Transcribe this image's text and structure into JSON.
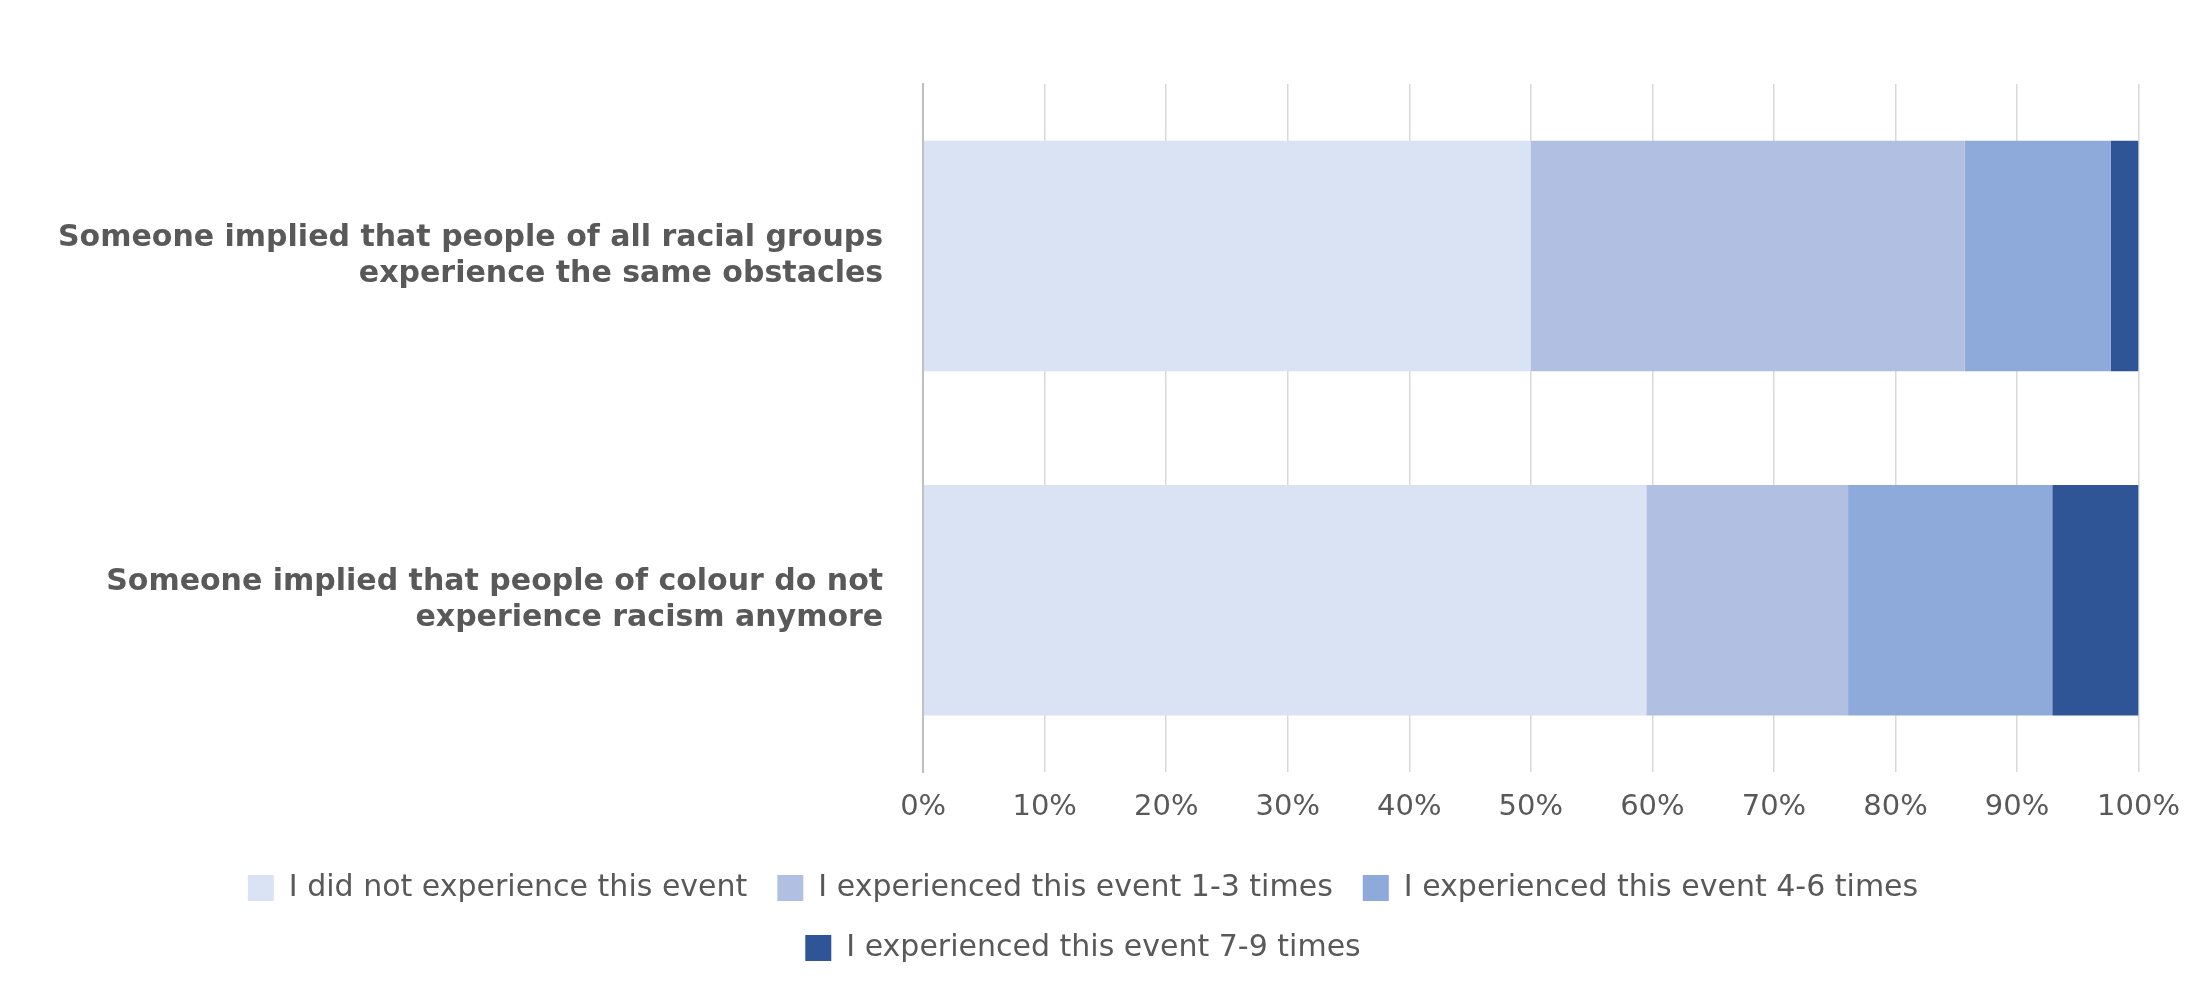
{
  "chart_data": {
    "type": "bar",
    "orientation": "horizontal",
    "stacked": true,
    "categories": [
      "Someone implied that people of all racial groups experience the same obstacles",
      "Someone implied that people of colour do not experience racism anymore"
    ],
    "series": [
      {
        "name": "I did not experience this event",
        "color": "#dae3f3",
        "values": [
          50,
          59.5
        ]
      },
      {
        "name": "I experienced this event 1-3 times",
        "color": "#b0bfe2",
        "values": [
          35.7,
          16.6
        ]
      },
      {
        "name": "I experienced this event 4-6 times",
        "color": "#8eaadb",
        "values": [
          12,
          16.8
        ]
      },
      {
        "name": "I experienced this event 7-9 times",
        "color": "#2f5597",
        "values": [
          2.3,
          7.1
        ]
      }
    ],
    "xlim": [
      0,
      100
    ],
    "xticks": [
      {
        "value": 0,
        "label": "0%"
      },
      {
        "value": 10,
        "label": "10%"
      },
      {
        "value": 20,
        "label": "20%"
      },
      {
        "value": 30,
        "label": "30%"
      },
      {
        "value": 40,
        "label": "40%"
      },
      {
        "value": 50,
        "label": "50%"
      },
      {
        "value": 60,
        "label": "60%"
      },
      {
        "value": 70,
        "label": "70%"
      },
      {
        "value": 80,
        "label": "80%"
      },
      {
        "value": 90,
        "label": "90%"
      },
      {
        "value": 100,
        "label": "100%"
      }
    ],
    "grid": "x",
    "legend": "bottom"
  }
}
